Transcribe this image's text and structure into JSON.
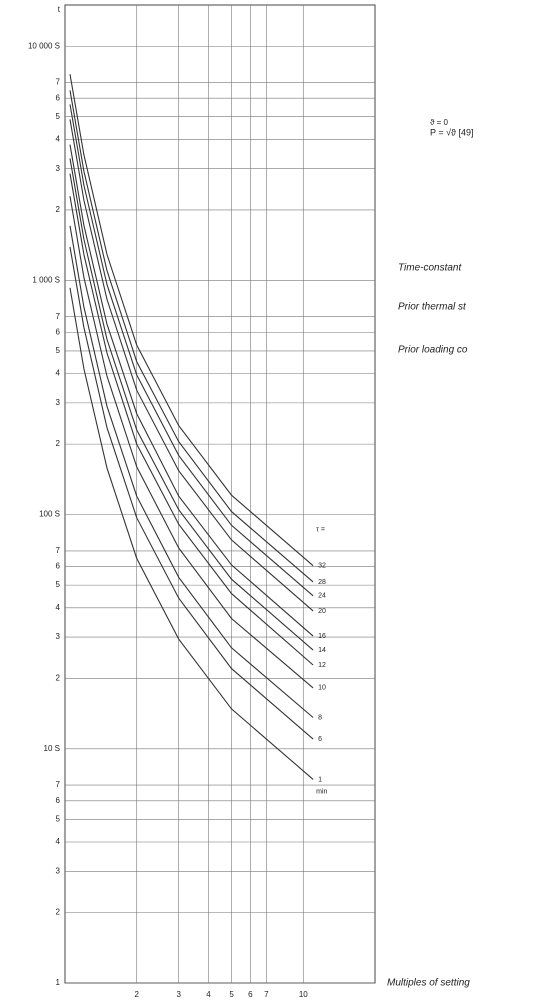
{
  "chart_data": {
    "type": "line",
    "y_axis_label": "t",
    "x_axis_label": "Multiples of setting",
    "annotations": [
      "ϑ = 0",
      "P = √ϑ [49]",
      "Time-constant",
      "Prior thermal st",
      "Prior loading co"
    ],
    "curve_label_title": "τ =",
    "curve_label_unit": "min",
    "x": [
      1.05,
      1.2,
      1.5,
      2,
      3,
      5,
      11
    ],
    "series": [
      {
        "name": "1",
        "color": "#333333",
        "values": [
          930,
          420,
          158,
          65,
          29.4,
          14.8,
          7.4
        ]
      },
      {
        "name": "6",
        "color": "#333333",
        "values": [
          1390,
          630,
          235,
          97,
          44,
          22,
          11
        ]
      },
      {
        "name": "8",
        "color": "#333333",
        "values": [
          1710,
          770,
          290,
          120,
          54,
          27,
          13.6
        ]
      },
      {
        "name": "10",
        "color": "#333333",
        "values": [
          2290,
          1030,
          390,
          160,
          72,
          36,
          18.2
        ]
      },
      {
        "name": "12",
        "color": "#333333",
        "values": [
          2860,
          1290,
          490,
          200,
          91,
          46,
          22.8
        ]
      },
      {
        "name": "14",
        "color": "#333333",
        "values": [
          3320,
          1500,
          560,
          230,
          105,
          53,
          26.4
        ]
      },
      {
        "name": "16",
        "color": "#333333",
        "values": [
          3800,
          1720,
          650,
          270,
          120,
          61,
          30.3
        ]
      },
      {
        "name": "20",
        "color": "#333333",
        "values": [
          4870,
          2200,
          830,
          340,
          154,
          78,
          38.8
        ]
      },
      {
        "name": "24",
        "color": "#333333",
        "values": [
          5650,
          2550,
          960,
          395,
          179,
          90,
          45
        ]
      },
      {
        "name": "28",
        "color": "#333333",
        "values": [
          6480,
          2930,
          1100,
          450,
          205,
          103,
          51.6
        ]
      },
      {
        "name": "32",
        "color": "#333333",
        "values": [
          7600,
          3440,
          1290,
          530,
          240,
          121,
          60.5
        ]
      }
    ],
    "xlim": [
      1,
      20
    ],
    "xticks": [
      2,
      3,
      4,
      5,
      6,
      7,
      10
    ],
    "ylim": [
      1,
      15000
    ],
    "yticks": [
      1,
      2,
      3,
      4,
      5,
      6,
      7,
      {
        "value": 10,
        "label": "10 S"
      },
      {
        "value": 20,
        "label": "2"
      },
      {
        "value": 30,
        "label": "3"
      },
      {
        "value": 40,
        "label": "4"
      },
      {
        "value": 50,
        "label": "5"
      },
      {
        "value": 60,
        "label": "6"
      },
      {
        "value": 70,
        "label": "7"
      },
      {
        "value": 100,
        "label": "100 S"
      },
      {
        "value": 200,
        "label": "2"
      },
      {
        "value": 300,
        "label": "3"
      },
      {
        "value": 400,
        "label": "4"
      },
      {
        "value": 500,
        "label": "5"
      },
      {
        "value": 600,
        "label": "6"
      },
      {
        "value": 700,
        "label": "7"
      },
      {
        "value": 1000,
        "label": "1 000 S"
      },
      {
        "value": 2000,
        "label": "2"
      },
      {
        "value": 3000,
        "label": "3"
      },
      {
        "value": 4000,
        "label": "4"
      },
      {
        "value": 5000,
        "label": "5"
      },
      {
        "value": 6000,
        "label": "6"
      },
      {
        "value": 7000,
        "label": "7"
      },
      {
        "value": 10000,
        "label": "10 000 S"
      }
    ],
    "log_x": true,
    "log_y": true,
    "grid": true
  }
}
